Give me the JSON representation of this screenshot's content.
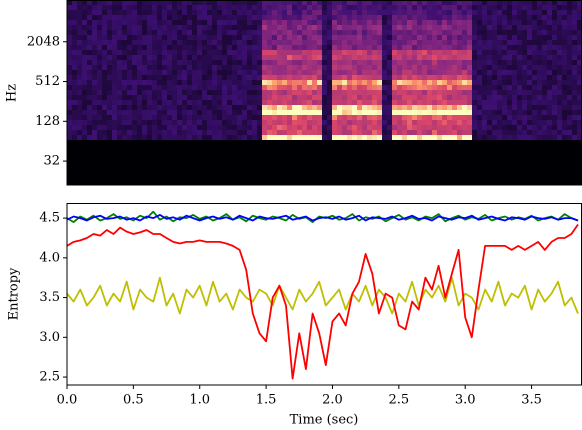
{
  "chart_data": [
    {
      "type": "spectrogram",
      "ylabel": "Hz",
      "log_scale": true,
      "ylim": [
        13.9,
        8785
      ],
      "yticks": [
        32,
        128,
        512,
        2048
      ],
      "xlim": [
        0,
        3.88
      ]
    },
    {
      "type": "line",
      "ylabel": "Entropy",
      "xlabel": "Time (sec)",
      "xlim": [
        0,
        3.88
      ],
      "ylim": [
        2.4,
        4.69
      ],
      "xticks": [
        {
          "value": 0,
          "label": "0.0"
        },
        0.5,
        {
          "value": 1,
          "label": "1.0"
        },
        1.5,
        {
          "value": 2,
          "label": "2.0"
        },
        2.5,
        {
          "value": 3,
          "label": "3.0"
        },
        3.5
      ],
      "yticks": [
        2.5,
        {
          "value": 3,
          "label": "3.0"
        },
        3.5,
        {
          "value": 4,
          "label": "4.0"
        },
        4.5
      ],
      "x": [
        0,
        0.05,
        0.1,
        0.15,
        0.2,
        0.25,
        0.3,
        0.35,
        0.4,
        0.45,
        0.5,
        0.55,
        0.6,
        0.65,
        0.7,
        0.75,
        0.8,
        0.85,
        0.9,
        0.95,
        1,
        1.05,
        1.1,
        1.15,
        1.2,
        1.25,
        1.3,
        1.35,
        1.4,
        1.45,
        1.5,
        1.55,
        1.6,
        1.65,
        1.7,
        1.75,
        1.8,
        1.85,
        1.9,
        1.95,
        2,
        2.05,
        2.1,
        2.15,
        2.2,
        2.25,
        2.3,
        2.35,
        2.4,
        2.45,
        2.5,
        2.55,
        2.6,
        2.65,
        2.7,
        2.75,
        2.8,
        2.85,
        2.9,
        2.95,
        3,
        3.05,
        3.1,
        3.15,
        3.2,
        3.25,
        3.3,
        3.35,
        3.4,
        3.45,
        3.5,
        3.55,
        3.6,
        3.65,
        3.7,
        3.75,
        3.8,
        3.85
      ],
      "series": [
        {
          "color": "#bfbf00",
          "values": [
            3.55,
            3.45,
            3.6,
            3.4,
            3.5,
            3.65,
            3.4,
            3.55,
            3.45,
            3.7,
            3.35,
            3.6,
            3.5,
            3.45,
            3.75,
            3.4,
            3.55,
            3.3,
            3.6,
            3.5,
            3.65,
            3.4,
            3.7,
            3.45,
            3.55,
            3.35,
            3.6,
            3.5,
            3.45,
            3.6,
            3.55,
            3.4,
            3.65,
            3.5,
            3.35,
            3.6,
            3.45,
            3.55,
            3.7,
            3.4,
            3.5,
            3.6,
            3.35,
            3.55,
            3.45,
            3.65,
            3.4,
            3.6,
            3.5,
            3.3,
            3.55,
            3.45,
            3.7,
            3.4,
            3.6,
            3.5,
            3.65,
            3.45,
            3.75,
            3.4,
            3.55,
            3.5,
            3.35,
            3.6,
            3.45,
            3.7,
            3.4,
            3.55,
            3.5,
            3.65,
            3.35,
            3.6,
            3.45,
            3.55,
            3.7,
            3.4,
            3.5,
            3.3
          ]
        },
        {
          "color": "#ff0000",
          "values": [
            4.15,
            4.2,
            4.22,
            4.25,
            4.3,
            4.28,
            4.35,
            4.3,
            4.38,
            4.33,
            4.3,
            4.32,
            4.35,
            4.3,
            4.3,
            4.25,
            4.2,
            4.18,
            4.2,
            4.2,
            4.22,
            4.2,
            4.2,
            4.2,
            4.18,
            4.15,
            4.1,
            3.85,
            3.3,
            3.05,
            2.95,
            3.5,
            3.65,
            3.4,
            2.48,
            3.05,
            2.6,
            3.3,
            3.05,
            2.65,
            3.2,
            3.3,
            3.15,
            3.55,
            3.7,
            4.05,
            3.8,
            3.3,
            3.55,
            3.5,
            3.15,
            3.1,
            3.45,
            3.35,
            3.75,
            3.6,
            3.9,
            3.5,
            3.8,
            4.1,
            3.25,
            3.0,
            3.6,
            4.15,
            4.15,
            4.15,
            4.15,
            4.1,
            4.15,
            4.1,
            4.15,
            4.2,
            4.1,
            4.2,
            4.25,
            4.25,
            4.3,
            4.42
          ]
        },
        {
          "color": "#008000",
          "values": [
            4.5,
            4.45,
            4.52,
            4.48,
            4.53,
            4.47,
            4.5,
            4.55,
            4.49,
            4.51,
            4.47,
            4.53,
            4.5,
            4.58,
            4.48,
            4.52,
            4.46,
            4.51,
            4.5,
            4.54,
            4.49,
            4.52,
            4.47,
            4.5,
            4.55,
            4.48,
            4.51,
            4.46,
            4.53,
            4.5,
            4.48,
            4.52,
            4.5,
            4.47,
            4.54,
            4.49,
            4.51,
            4.45,
            4.52,
            4.5,
            4.53,
            4.48,
            4.5,
            4.55,
            4.47,
            4.51,
            4.49,
            4.52,
            4.46,
            4.5,
            4.54,
            4.48,
            4.51,
            4.47,
            4.52,
            4.5,
            4.55,
            4.46,
            4.5,
            4.53,
            4.48,
            4.51,
            4.49,
            4.54,
            4.47,
            4.5,
            4.52,
            4.48,
            4.51,
            4.49,
            4.53,
            4.47,
            4.5,
            4.52,
            4.48,
            4.55,
            4.5,
            4.47
          ]
        },
        {
          "color": "#0000ff",
          "values": [
            4.48,
            4.52,
            4.5,
            4.47,
            4.51,
            4.53,
            4.49,
            4.5,
            4.52,
            4.48,
            4.5,
            4.47,
            4.52,
            4.5,
            4.54,
            4.49,
            4.51,
            4.48,
            4.53,
            4.5,
            4.47,
            4.5,
            4.52,
            4.49,
            4.51,
            4.48,
            4.53,
            4.5,
            4.47,
            4.52,
            4.5,
            4.49,
            4.51,
            4.53,
            4.48,
            4.5,
            4.52,
            4.47,
            4.5,
            4.51,
            4.49,
            4.52,
            4.48,
            4.5,
            4.53,
            4.47,
            4.51,
            4.5,
            4.49,
            4.52,
            4.48,
            4.5,
            4.53,
            4.49,
            4.5,
            4.47,
            4.52,
            4.5,
            4.48,
            4.51,
            4.5,
            4.53,
            4.48,
            4.5,
            4.52,
            4.49,
            4.47,
            4.51,
            4.5,
            4.48,
            4.52,
            4.5,
            4.49,
            4.51,
            4.48,
            4.5,
            4.5,
            4.47
          ]
        }
      ]
    }
  ]
}
